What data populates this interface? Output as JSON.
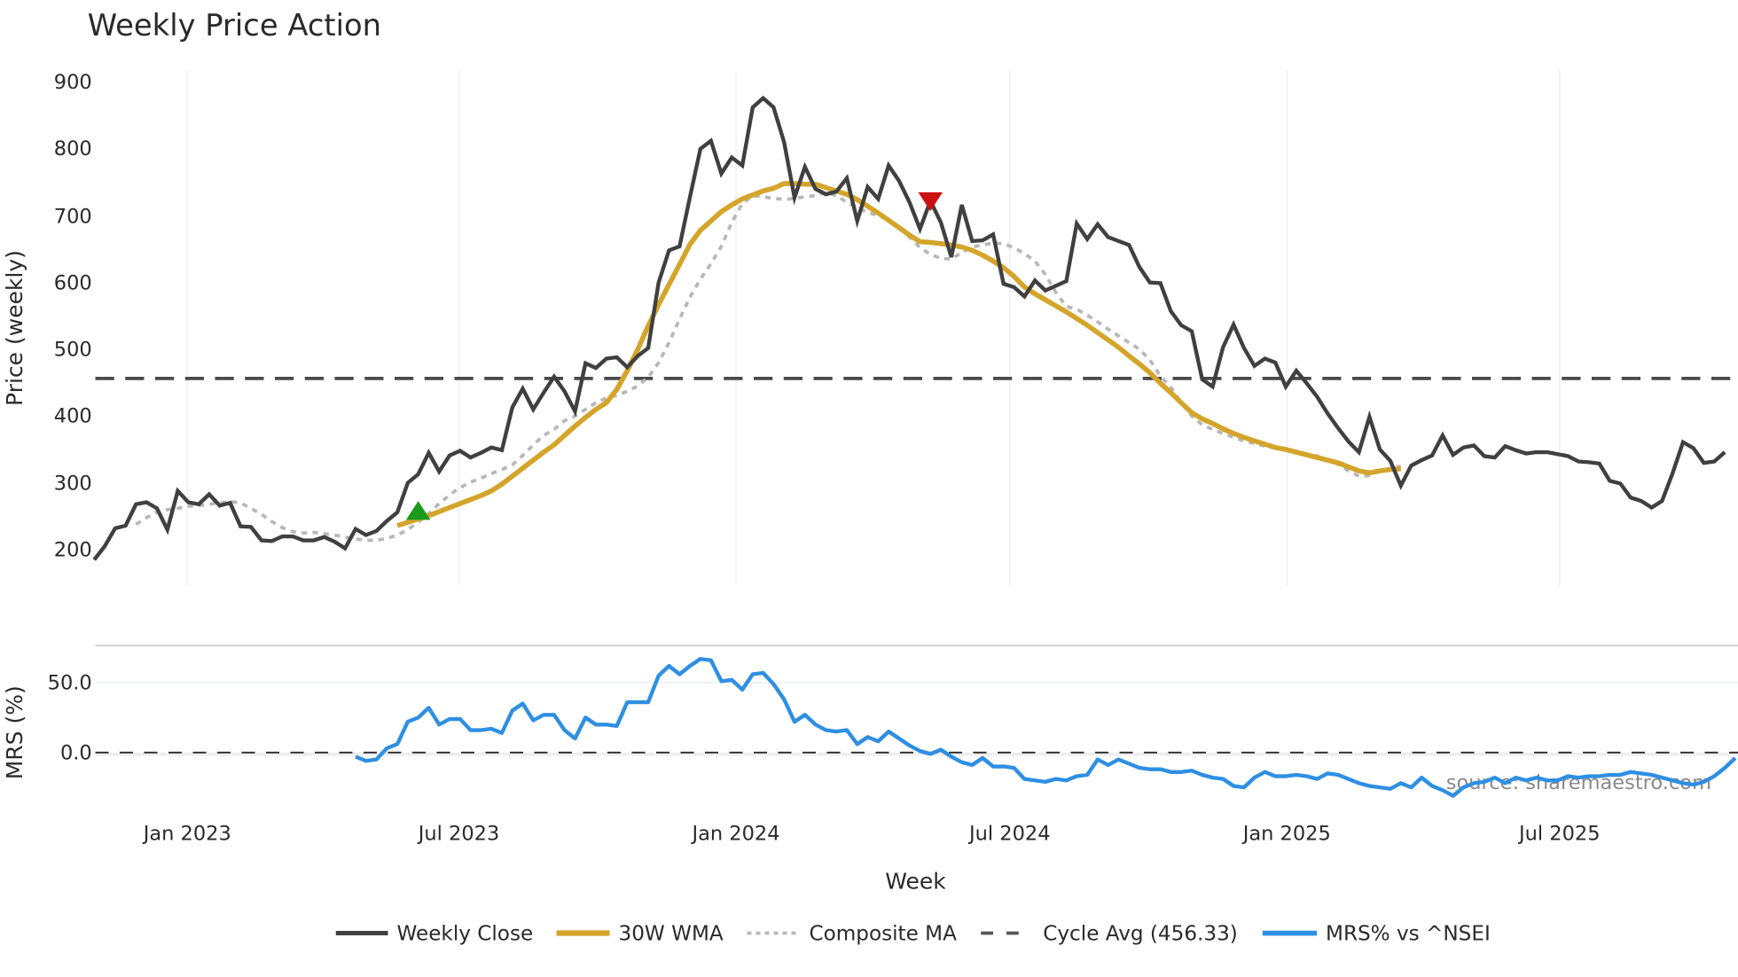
{
  "chart_data": {
    "type": "line",
    "title": "Weekly Price Action",
    "xlabel": "Week",
    "panels": [
      {
        "name": "price",
        "ylabel": "Price (weekly)",
        "ylim": [
          160,
          920
        ],
        "yticks": [
          200,
          300,
          400,
          500,
          600,
          700,
          800,
          900
        ],
        "grid": "vertical"
      },
      {
        "name": "mrs",
        "ylabel": "MRS (%)",
        "ylim": [
          -45,
          78
        ],
        "yticks": [
          "0.0",
          "50.0"
        ],
        "grid": "horizontal"
      }
    ],
    "x_ticks": [
      "Jan 2023",
      "Jul 2023",
      "Jan 2024",
      "Jul 2024",
      "Jan 2025",
      "Jul 2025"
    ],
    "x_start_index_note": "week 0 ≈ early Nov 2022",
    "series": [
      {
        "name": "Weekly Close",
        "color": "#404040",
        "style": "solid",
        "start": 0,
        "values": [
          185,
          205,
          232,
          236,
          268,
          271,
          262,
          230,
          288,
          271,
          268,
          283,
          266,
          270,
          235,
          234,
          214,
          213,
          220,
          220,
          214,
          214,
          219,
          212,
          202,
          231,
          222,
          228,
          243,
          256,
          300,
          313,
          345,
          317,
          341,
          348,
          338,
          345,
          353,
          349,
          413,
          441,
          410,
          435,
          459,
          437,
          407,
          479,
          472,
          486,
          488,
          473,
          490,
          502,
          600,
          648,
          654,
          728,
          800,
          812,
          763,
          787,
          775,
          862,
          876,
          862,
          810,
          727,
          773,
          740,
          732,
          736,
          756,
          692,
          743,
          725,
          775,
          752,
          720,
          680,
          722,
          690,
          638,
          716,
          662,
          663,
          672,
          598,
          593,
          579,
          603,
          588,
          595,
          602,
          688,
          665,
          687,
          668,
          662,
          656,
          623,
          600,
          599,
          557,
          536,
          527,
          455,
          444,
          503,
          537,
          502,
          475,
          486,
          480,
          444,
          468,
          449,
          429,
          404,
          382,
          362,
          346,
          399,
          350,
          333,
          296,
          326,
          334,
          341,
          371,
          342,
          353,
          356,
          340,
          338,
          355,
          349,
          344,
          346,
          346,
          343,
          340,
          332,
          331,
          329,
          303,
          299,
          278,
          273,
          263,
          273,
          314,
          361,
          352,
          330,
          332,
          346
        ]
      },
      {
        "name": "30W WMA",
        "color": "#d4a52a",
        "style": "solid",
        "start": 29,
        "values": [
          236,
          241,
          246,
          251,
          257,
          263,
          269,
          275,
          281,
          288,
          298,
          310,
          322,
          334,
          346,
          357,
          371,
          385,
          398,
          410,
          420,
          440,
          468,
          500,
          535,
          567,
          597,
          627,
          657,
          678,
          692,
          706,
          716,
          725,
          731,
          737,
          741,
          748,
          748,
          747,
          747,
          742,
          737,
          732,
          724,
          714,
          704,
          693,
          682,
          671,
          661,
          660,
          658,
          656,
          653,
          648,
          641,
          632,
          622,
          609,
          593,
          583,
          574,
          565,
          556,
          546,
          536,
          525,
          514,
          503,
          490,
          478,
          465,
          449,
          435,
          420,
          405,
          396,
          389,
          381,
          374,
          368,
          363,
          358,
          353,
          350,
          346,
          342,
          338,
          334,
          330,
          324,
          318,
          315,
          318,
          320,
          321
        ]
      },
      {
        "name": "Composite MA",
        "color": "#b8b8b8",
        "style": "dotted",
        "start": 4,
        "values": [
          238,
          248,
          256,
          260,
          262,
          265,
          266,
          268,
          270,
          272,
          270,
          262,
          253,
          242,
          233,
          227,
          225,
          226,
          224,
          222,
          219,
          216,
          214,
          214,
          217,
          222,
          230,
          241,
          254,
          269,
          282,
          293,
          301,
          307,
          314,
          320,
          327,
          341,
          357,
          371,
          380,
          393,
          400,
          410,
          420,
          427,
          431,
          437,
          445,
          458,
          480,
          510,
          545,
          578,
          605,
          628,
          654,
          690,
          718,
          730,
          728,
          726,
          724,
          726,
          728,
          730,
          735,
          730,
          720,
          712,
          705,
          700,
          694,
          683,
          668,
          652,
          642,
          636,
          635,
          645,
          653,
          656,
          659,
          658,
          652,
          643,
          632,
          612,
          585,
          564,
          560,
          551,
          541,
          530,
          520,
          510,
          500,
          484,
          460,
          443,
          420,
          400,
          387,
          380,
          374,
          368,
          363,
          359,
          355,
          352,
          349,
          346,
          343,
          340,
          335,
          328,
          318,
          310,
          311,
          318,
          322,
          325
        ]
      },
      {
        "name": "Cycle Avg (456.33)",
        "color": "#4a4a4a",
        "style": "dashed",
        "value": 456.33
      },
      {
        "name": "MRS% vs ^NSEI",
        "color": "#2e8fe3",
        "style": "solid",
        "panel": "mrs",
        "start": 25,
        "values": [
          -3,
          -6,
          -5,
          3,
          6,
          22,
          25,
          32,
          20,
          24,
          24,
          16,
          16,
          17,
          14,
          30,
          35,
          23,
          27,
          27,
          16,
          10,
          25,
          20,
          20,
          19,
          36,
          36,
          36,
          55,
          62,
          56,
          62,
          67,
          66,
          51,
          52,
          45,
          56,
          57,
          49,
          38,
          22,
          27,
          20,
          16,
          15,
          16,
          6,
          11,
          8,
          15,
          10,
          5,
          1,
          -1,
          2,
          -3,
          -7,
          -9,
          -4,
          -10,
          -10,
          -11,
          -19,
          -20,
          -21,
          -19,
          -20,
          -17,
          -16,
          -5,
          -9,
          -5,
          -8,
          -11,
          -12,
          -12,
          -14,
          -14,
          -13,
          -16,
          -18,
          -19,
          -24,
          -25,
          -18,
          -14,
          -17,
          -17,
          -16,
          -17,
          -19,
          -15,
          -16,
          -19,
          -22,
          -24,
          -25,
          -26,
          -22,
          -25,
          -18,
          -24,
          -27,
          -31,
          -25,
          -22,
          -21,
          -18,
          -22,
          -18,
          -20,
          -18,
          -20,
          -20,
          -17,
          -18,
          -17,
          -17,
          -16,
          -16,
          -14,
          -15,
          -16,
          -18,
          -20,
          -22,
          -23,
          -21,
          -17,
          -11,
          -4,
          2,
          -3,
          -7,
          -6,
          -4,
          -1
        ]
      }
    ],
    "markers": [
      {
        "type": "buy",
        "shape": "triangle-up",
        "color": "#1a9a1a",
        "week": 31,
        "price": 258
      },
      {
        "type": "sell",
        "shape": "triangle-down",
        "color": "#cc1111",
        "week": 80,
        "price": 720
      }
    ],
    "legend": {
      "position": "bottom",
      "items": [
        {
          "label": "Weekly Close",
          "color": "#404040",
          "style": "solid"
        },
        {
          "label": "30W WMA",
          "color": "#d4a52a",
          "style": "solid"
        },
        {
          "label": "Composite MA",
          "color": "#b8b8b8",
          "style": "dotted"
        },
        {
          "label": "Cycle Avg (456.33)",
          "color": "#4a4a4a",
          "style": "dashed"
        },
        {
          "label": "MRS% vs ^NSEI",
          "color": "#2e8fe3",
          "style": "solid"
        }
      ]
    },
    "annotations": [
      "source: sharemaestro.com"
    ]
  },
  "labels": {
    "title": "Weekly Price Action",
    "price_axis_title": "Price (weekly)",
    "mrs_axis_title": "MRS (%)",
    "x_axis_title": "Week",
    "watermark": "source: sharemaestro.com",
    "price_ticks": [
      "900",
      "800",
      "700",
      "600",
      "500",
      "400",
      "300",
      "200"
    ],
    "mrs_ticks": [
      "50.0",
      "0.0"
    ],
    "x_ticks": [
      "Jan 2023",
      "Jul 2023",
      "Jan 2024",
      "Jul 2024",
      "Jan 2025",
      "Jul 2025"
    ],
    "legend": [
      "Weekly Close",
      "30W WMA",
      "Composite MA",
      "Cycle Avg (456.33)",
      "MRS% vs ^NSEI"
    ]
  }
}
